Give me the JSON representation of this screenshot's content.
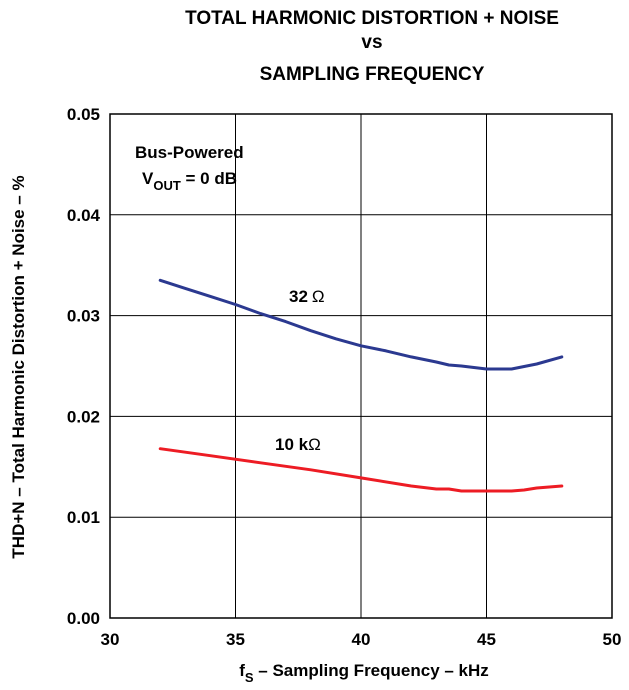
{
  "chart_data": {
    "type": "line",
    "title_lines": [
      "TOTAL HARMONIC DISTORTION + NOISE",
      "vs",
      "SAMPLING FREQUENCY"
    ],
    "xlabel": {
      "prefix": "f",
      "subscript": "S",
      "suffix": " – Sampling Frequency – kHz"
    },
    "ylabel": "THD+N – Total Harmonic Distortion + Noise – %",
    "xlim": [
      30,
      50
    ],
    "ylim": [
      0.0,
      0.05
    ],
    "x_ticks": [
      30,
      35,
      40,
      45,
      50
    ],
    "x_tick_labels": [
      "30",
      "35",
      "40",
      "45",
      "50"
    ],
    "y_ticks": [
      0.0,
      0.01,
      0.02,
      0.03,
      0.04,
      0.05
    ],
    "y_tick_labels": [
      "0.00",
      "0.01",
      "0.02",
      "0.03",
      "0.04",
      "0.05"
    ],
    "grid": true,
    "annotation": {
      "line1": "Bus-Powered",
      "line2_prefix": "V",
      "line2_subscript": "OUT",
      "line2_suffix": " = 0 dB"
    },
    "series": [
      {
        "name": "32 Ω",
        "label_main": "32",
        "label_unit": "Ω",
        "color": "#2b3990",
        "x": [
          32,
          33,
          34,
          35,
          36,
          37,
          38,
          39,
          40,
          41,
          42,
          43,
          43.5,
          44,
          45,
          46,
          47,
          48
        ],
        "y": [
          0.0335,
          0.0327,
          0.0319,
          0.0311,
          0.0302,
          0.0294,
          0.0285,
          0.0277,
          0.027,
          0.0265,
          0.0259,
          0.0254,
          0.0251,
          0.025,
          0.0247,
          0.0247,
          0.0252,
          0.0259
        ]
      },
      {
        "name": "10 kΩ",
        "label_main": "10 k",
        "label_unit": "Ω",
        "color": "#ed1c24",
        "x": [
          32,
          34,
          36,
          38,
          40,
          42,
          43,
          43.5,
          44,
          45,
          46,
          46.5,
          47,
          48
        ],
        "y": [
          0.0168,
          0.0161,
          0.0154,
          0.0147,
          0.0139,
          0.0131,
          0.0128,
          0.0128,
          0.0126,
          0.0126,
          0.0126,
          0.0127,
          0.0129,
          0.0131
        ]
      }
    ]
  }
}
